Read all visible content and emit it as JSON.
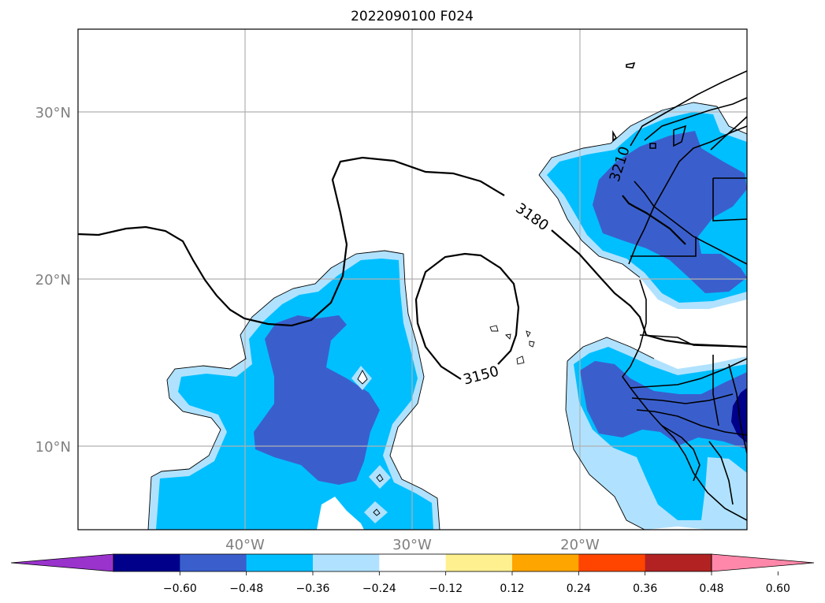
{
  "title": "2022090100 F024",
  "latitude_labels": [
    "30°N",
    "20°N",
    "10°N"
  ],
  "longitude_labels": [
    "40°W",
    "30°W",
    "20°W"
  ],
  "contour_labels": [
    "3150",
    "3180",
    "3210"
  ],
  "colorbar": {
    "labels": [
      "−0.60",
      "−0.48",
      "−0.36",
      "−0.24",
      "−0.12",
      "0.12",
      "0.24",
      "0.36",
      "0.48",
      "0.60"
    ],
    "colors": [
      "#9933cc",
      "#00008b",
      "#3a5fcd",
      "#00bfff",
      "#b0e2ff",
      "#ffffff",
      "#fff08f",
      "#ffa500",
      "#ff4500",
      "#b22222",
      "#ff88aa"
    ]
  },
  "colors": {
    "light_blue": "#b0e2ff",
    "deep_sky_blue": "#00bfff",
    "royal_blue": "#3a5fcd",
    "navy": "#00008b",
    "coastline": "#000000",
    "gridline": "#b0b0b0"
  }
}
